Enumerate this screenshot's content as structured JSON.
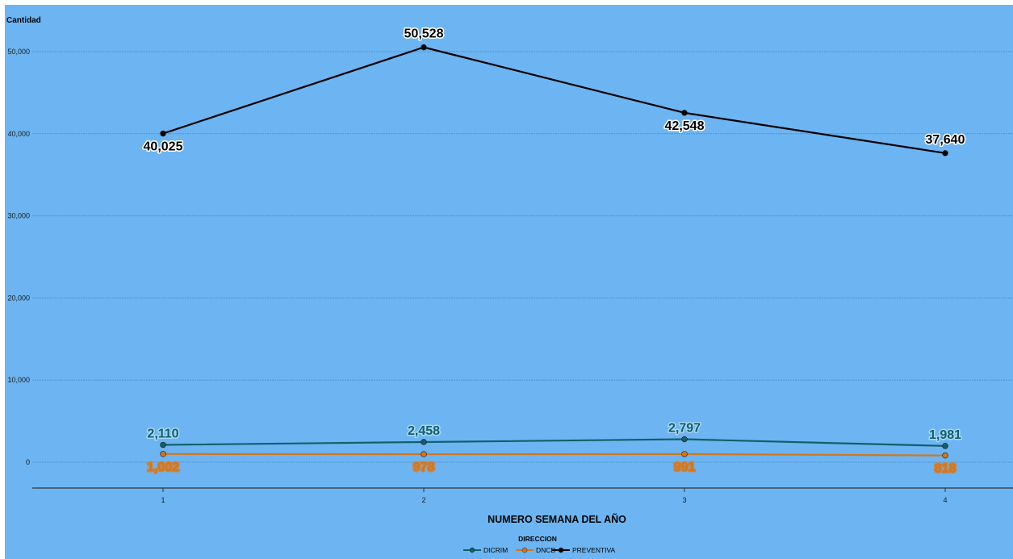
{
  "chart_data": {
    "type": "line",
    "ylabel": "Cantidad",
    "xlabel": "NUMERO SEMANA DEL AÑO",
    "categories": [
      "1",
      "2",
      "3",
      "4"
    ],
    "ylim": [
      -3200,
      51000
    ],
    "yticks": [
      0,
      10000,
      20000,
      30000,
      40000,
      50000
    ],
    "ytick_labels": [
      "0",
      "10,000",
      "20,000",
      "30,000",
      "40,000",
      "50,000"
    ],
    "grid": true,
    "legend_title": "DIRECCION",
    "legend_position": "bottom-center",
    "series": [
      {
        "name": "DICRIM",
        "color": "#11606a",
        "values": [
          2110,
          2458,
          2797,
          1981
        ],
        "labels": [
          "2,110",
          "2,458",
          "2,797",
          "1,981"
        ]
      },
      {
        "name": "DNCD",
        "color": "#d4761c",
        "values": [
          1002,
          978,
          991,
          818
        ],
        "labels": [
          "1,002",
          "978",
          "991",
          "818"
        ]
      },
      {
        "name": "PREVENTIVA",
        "color": "#000000",
        "values": [
          40025,
          50528,
          42548,
          37640
        ],
        "labels": [
          "40,025",
          "50,528",
          "42,548",
          "37,640"
        ]
      }
    ]
  }
}
